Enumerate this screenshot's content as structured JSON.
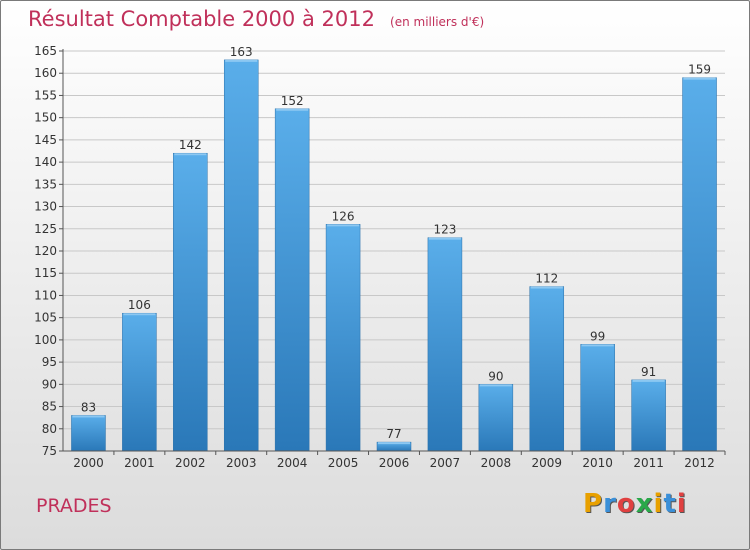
{
  "chart_data": {
    "type": "bar",
    "title": "Résultat Comptable 2000 à 2012",
    "subtitle": "(en milliers d'€)",
    "categories": [
      "2000",
      "2001",
      "2002",
      "2003",
      "2004",
      "2005",
      "2006",
      "2007",
      "2008",
      "2009",
      "2010",
      "2011",
      "2012"
    ],
    "values": [
      83,
      106,
      142,
      163,
      152,
      126,
      77,
      123,
      90,
      112,
      99,
      91,
      159
    ],
    "ylim": [
      75,
      165
    ],
    "yticks": [
      "75",
      "80",
      "85",
      "90",
      "95",
      "100",
      "105",
      "110",
      "115",
      "120",
      "125",
      "130",
      "135",
      "140",
      "145",
      "150",
      "155",
      "160",
      "165"
    ],
    "xlabel": "",
    "ylabel": "",
    "grid": true
  },
  "location": "PRADES",
  "logo": {
    "letters": [
      "P",
      "r",
      "o",
      "x",
      "i",
      "t",
      "i"
    ],
    "colors": [
      "#e8a000",
      "#3a8fd8",
      "#e04040",
      "#2aa84a",
      "#e8a000",
      "#3a8fd8",
      "#e04040"
    ]
  },
  "colors": {
    "bar": "#3d8fd0",
    "title": "#c0305a"
  }
}
